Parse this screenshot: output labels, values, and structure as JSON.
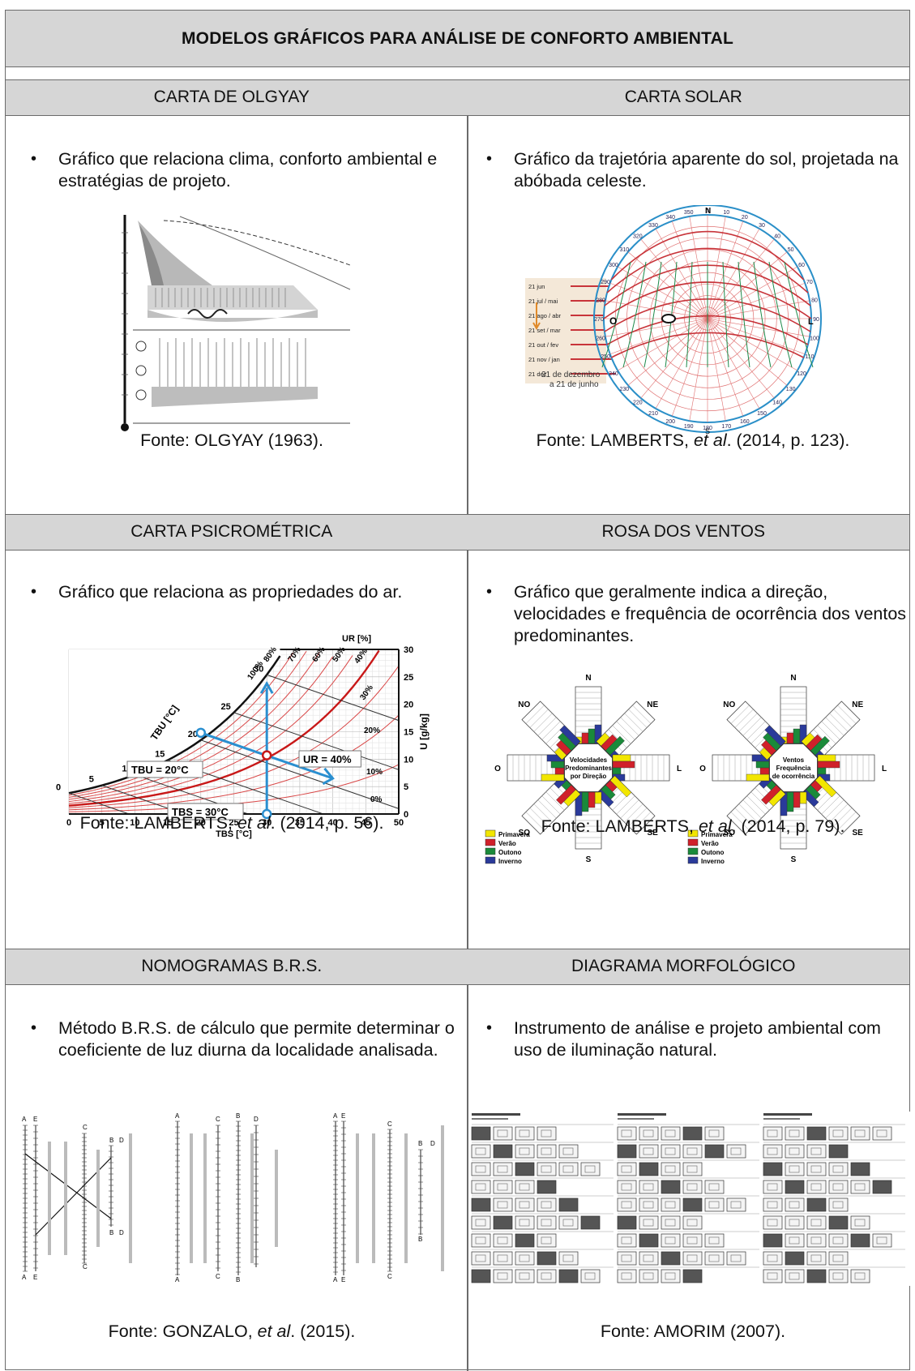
{
  "title": "MODELOS GRÁFICOS PARA ANÁLISE DE CONFORTO AMBIENTAL",
  "sections": [
    {
      "heading": "CARTA DE OLGYAY",
      "text": "Gráfico que relaciona clima, conforto ambiental e estratégias de projeto.",
      "source_pre": "Fonte: OLGYAY (1963).",
      "source_em": "",
      "source_post": ""
    },
    {
      "heading": "CARTA SOLAR",
      "text": "Gráfico da trajetória aparente do sol, projetada na abóbada celeste.",
      "source_pre": "Fonte: LAMBERTS, ",
      "source_em": "et al",
      "source_post": ". (2014, p. 123).",
      "figure_labels": {
        "north": "N",
        "west": "O",
        "east": "L",
        "south": "S",
        "dates": [
          "21 jun",
          "21 jul / mai",
          "21 ago / abr",
          "21 set / mar",
          "21 out / fev",
          "21 nov / jan",
          "21 dez"
        ],
        "caption": "21 de dezembro a 21 de junho"
      }
    },
    {
      "heading": "CARTA PSICROMÉTRICA",
      "text": "Gráfico que relaciona as propriedades do ar.",
      "source_pre": "Fonte: LAMBERTS, ",
      "source_em": "et al",
      "source_post": ". (2014, p. 56).",
      "figure_labels": {
        "ur_axis": "UR [%]",
        "u_axis": "U [g/kg]",
        "tbu_axis": "TBU [°C]",
        "tbs_axis": "TBS [°C]",
        "tbu_note": "TBU = 20°C",
        "tbs_note": "TBS = 30°C",
        "ur_note": "UR = 40%",
        "x_ticks": [
          "0",
          "5",
          "10",
          "15",
          "20",
          "25",
          "30",
          "35",
          "40",
          "45",
          "50"
        ],
        "y_ticks": [
          "0",
          "5",
          "10",
          "15",
          "20",
          "25",
          "30"
        ],
        "rh_labels": [
          "100%",
          "80%",
          "70%",
          "60%",
          "50%",
          "40%",
          "30%",
          "20%",
          "10%",
          "0%"
        ],
        "tbu_ticks": [
          "0",
          "5",
          "10",
          "15",
          "20",
          "25",
          "30"
        ]
      }
    },
    {
      "heading": "ROSA DOS VENTOS",
      "text": "Gráfico que geralmente indica a direção, velocidades e frequência de ocorrência dos ventos predominantes.",
      "source_pre": "Fonte: LAMBERTS, ",
      "source_em": "et al",
      "source_post": ". (2014, p. 79).",
      "figure_labels": {
        "dirs": [
          "N",
          "NE",
          "L",
          "SE",
          "S",
          "SO",
          "O",
          "NO"
        ],
        "left_center": "Velocidades Predominantes por Direção",
        "right_center": "Ventos Frequência de ocorrência",
        "legend": [
          "Primavera",
          "Verão",
          "Outono",
          "Inverno"
        ],
        "legend_colors": [
          "#f2e600",
          "#d0202a",
          "#1a8a3a",
          "#2a3a9a"
        ]
      }
    },
    {
      "heading": "NOMOGRAMAS B.R.S.",
      "text": "Método B.R.S. de cálculo que permite determinar o coeficiente de luz diurna da localidade analisada.",
      "source_pre": "Fonte: GONZALO, ",
      "source_em": "et al",
      "source_post": ". (2015).",
      "figure_labels": {
        "scale_letters": [
          "A",
          "E",
          "C",
          "B",
          "D"
        ]
      }
    },
    {
      "heading": "DIAGRAMA MORFOLÓGICO",
      "text": "Instrumento de análise e projeto ambiental com uso de iluminação natural.",
      "source_pre": "Fonte: AMORIM (2007).",
      "source_em": "",
      "source_post": ""
    }
  ]
}
